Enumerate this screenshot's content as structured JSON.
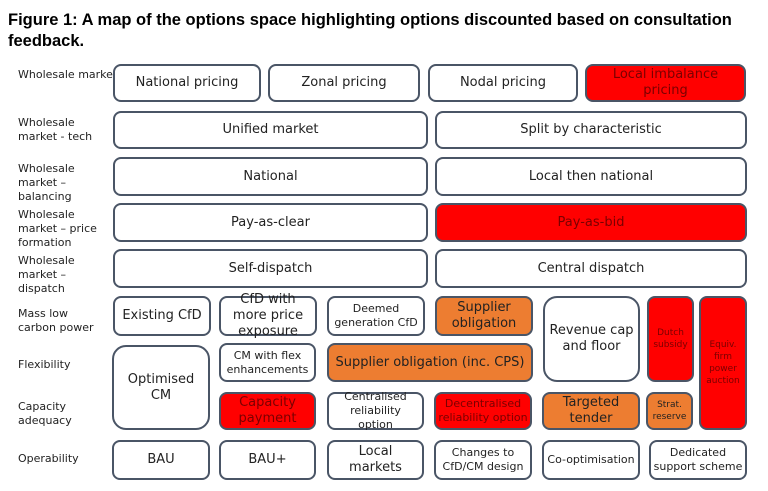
{
  "title": "Figure 1: A map of the options space highlighting options discounted based on consultation feedback.",
  "colors": {
    "discounted": "#ff0000",
    "partially_discounted": "#ed7d31",
    "retained": "#ffffff",
    "border": "#4a5566"
  },
  "rows": [
    "Wholesale market - location",
    "Wholesale market - tech",
    "Wholesale market – balancing",
    "Wholesale market – price formation",
    "Wholesale market – dispatch",
    "Mass low carbon power",
    "Flexibility",
    "Capacity adequacy",
    "Operability"
  ],
  "options": {
    "national_pricing": "National pricing",
    "zonal_pricing": "Zonal pricing",
    "nodal_pricing": "Nodal pricing",
    "local_imbalance": "Local imbalance pricing",
    "unified": "Unified market",
    "split": "Split by characteristic",
    "national": "National",
    "local_then_national": "Local then national",
    "pay_as_clear": "Pay-as-clear",
    "pay_as_bid": "Pay-as-bid",
    "self_dispatch": "Self-dispatch",
    "central_dispatch": "Central dispatch",
    "existing_cfd": "Existing CfD",
    "cfd_more": "CfD with more price exposure",
    "deemed": "Deemed generation CfD",
    "supplier_obligation": "Supplier obligation",
    "revenue_cap": "Revenue cap and floor",
    "dutch": "Dutch subsidy",
    "equiv": "Equiv. firm power auction",
    "optimised_cm": "Optimised CM",
    "cm_flex": "CM with flex enhancements",
    "supplier_cps": "Supplier obligation (inc. CPS)",
    "capacity_payment": "Capacity payment",
    "centralised_ro": "Centralised reliability option",
    "decentralised_ro": "Decentralised reliability option",
    "targeted_tender": "Targeted tender",
    "strat_reserve": "Strat. reserve",
    "bau": "BAU",
    "bau_plus": "BAU+",
    "local_markets": "Local markets",
    "changes": "Changes to CfD/CM design",
    "co_opt": "Co-optimisation",
    "dedicated": "Dedicated support scheme"
  }
}
